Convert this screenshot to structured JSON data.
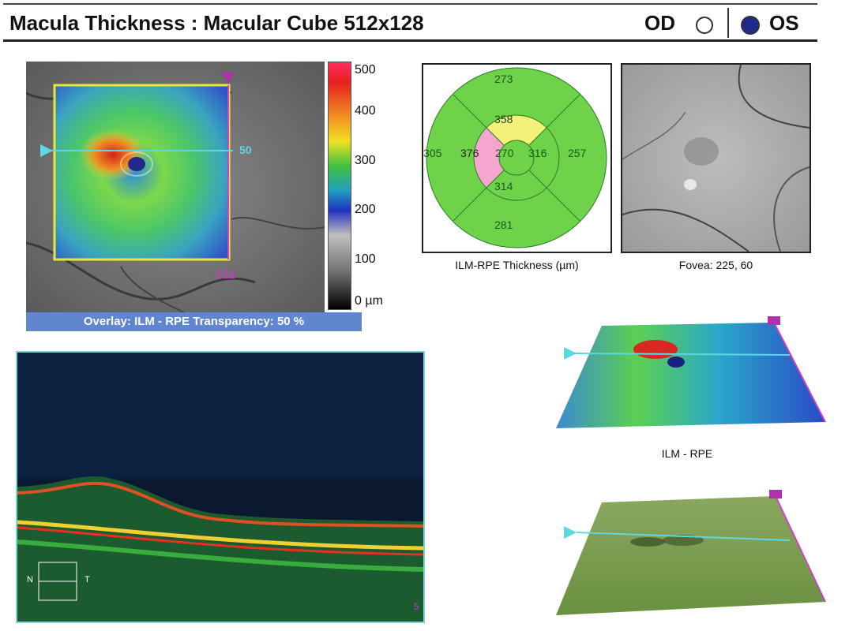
{
  "header": {
    "title": "Macula Thickness : Macular Cube 512x128",
    "od_label": "OD",
    "os_label": "OS"
  },
  "fundus_map": {
    "scan_line_label": "50",
    "bottom_label": "512",
    "overlay_text": "Overlay: ILM - RPE  Transparency: 50 %"
  },
  "scale": {
    "ticks": [
      "500",
      "400",
      "300",
      "200",
      "100",
      "0 µm"
    ]
  },
  "etdrs": {
    "center": "270",
    "inner_superior": "358",
    "inner_nasal": "376",
    "inner_temporal": "316",
    "inner_inferior": "314",
    "outer_superior": "273",
    "outer_nasal": "305",
    "outer_temporal": "257",
    "outer_inferior": "281",
    "caption": "ILM-RPE Thickness (µm)"
  },
  "fundus_photo": {
    "caption": "Fovea: 225, 60"
  },
  "bscan": {
    "nasal_label": "N",
    "temporal_label": "T",
    "corner_label": "5"
  },
  "map3d": {
    "label": "ILM - RPE"
  },
  "colors": {
    "header_rule": "#222222",
    "os_fill": "#1f2a8a",
    "overlay_bar": "#5f86cf",
    "etdrs_green": "#6fd34a",
    "etdrs_yellow": "#f2f27a",
    "etdrs_pink": "#f4a6cf",
    "bscan_border": "#7fd3d3"
  }
}
